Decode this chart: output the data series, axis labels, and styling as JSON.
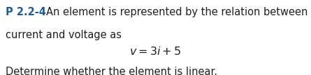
{
  "bold_label": "P 2.2-4",
  "line1_rest": "An element is represented by the relation between",
  "line2": "current and voltage as",
  "equation": "$v = 3i + 5$",
  "line4": "Determine whether the element is linear.",
  "text_color": "#231f20",
  "bold_color": "#1a5ba6",
  "bg_color": "#ffffff",
  "font_size": 10.5,
  "eq_font_size": 11.5,
  "fig_width": 4.45,
  "fig_height": 1.08,
  "dpi": 100
}
